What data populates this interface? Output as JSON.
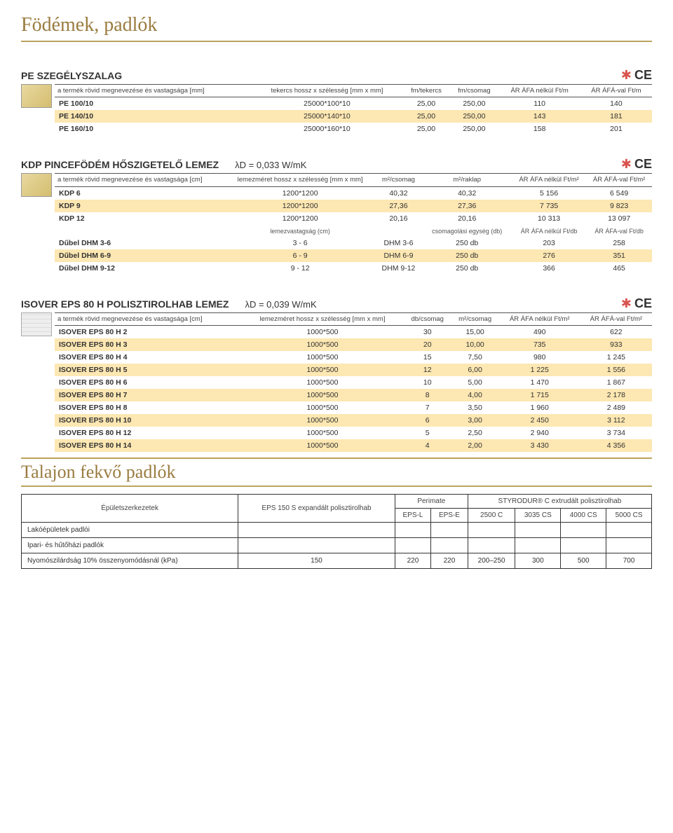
{
  "page_title": "Födémek, padlók",
  "pe": {
    "title": "PE SZEGÉLYSZALAG",
    "headers": [
      "a termék rövid megnevezése és vastagsága [mm]",
      "tekercs hossz x szélesség [mm x mm]",
      "fm/tekercs",
      "fm/csomag",
      "ÁR ÁFA nélkül Ft/m",
      "ÁR ÁFÁ-val Ft/m"
    ],
    "rows": [
      {
        "name": "PE 100/10",
        "size": "25000*100*10",
        "c1": "25,00",
        "c2": "250,00",
        "p1": "110",
        "p2": "140"
      },
      {
        "name": "PE 140/10",
        "size": "25000*140*10",
        "c1": "25,00",
        "c2": "250,00",
        "p1": "143",
        "p2": "181"
      },
      {
        "name": "PE 160/10",
        "size": "25000*160*10",
        "c1": "25,00",
        "c2": "250,00",
        "p1": "158",
        "p2": "201"
      }
    ]
  },
  "kdp": {
    "title": "KDP PINCEFÖDÉM HŐSZIGETELŐ LEMEZ",
    "lambda": "λD = 0,033 W/mK",
    "headers": [
      "a termék rövid megnevezése és vastagsága [cm]",
      "lemezméret hossz x szélesség [mm x mm]",
      "m²/csomag",
      "m²/raklap",
      "ÁR ÁFA nélkül Ft/m²",
      "ÁR ÁFÁ-val Ft/m²"
    ],
    "rows": [
      {
        "name": "KDP 6",
        "size": "1200*1200",
        "c1": "40,32",
        "c2": "40,32",
        "p1": "5 156",
        "p2": "6 549"
      },
      {
        "name": "KDP 9",
        "size": "1200*1200",
        "c1": "27,36",
        "c2": "27,36",
        "p1": "7 735",
        "p2": "9 823"
      },
      {
        "name": "KDP 12",
        "size": "1200*1200",
        "c1": "20,16",
        "c2": "20,16",
        "p1": "10 313",
        "p2": "13 097"
      }
    ],
    "sub_headers": [
      "",
      "lemezvastagság (cm)",
      "",
      "csomagolási egység (db)",
      "ÁR ÁFA nélkül Ft/db",
      "ÁR ÁFA-val Ft/db"
    ],
    "dubel": [
      {
        "name": "Dűbel DHM 3-6",
        "size": "3 - 6",
        "c1": "DHM 3-6",
        "c2": "250 db",
        "p1": "203",
        "p2": "258"
      },
      {
        "name": "Dűbel DHM 6-9",
        "size": "6 - 9",
        "c1": "DHM 6-9",
        "c2": "250 db",
        "p1": "276",
        "p2": "351"
      },
      {
        "name": "Dűbel DHM 9-12",
        "size": "9 - 12",
        "c1": "DHM 9-12",
        "c2": "250 db",
        "p1": "366",
        "p2": "465"
      }
    ]
  },
  "eps": {
    "title": "ISOVER EPS 80 H POLISZTIROLHAB LEMEZ",
    "lambda": "λD = 0,039 W/mK",
    "headers": [
      "a termék rövid megnevezése és vastagsága [cm]",
      "lemezméret hossz x szélesség [mm x mm]",
      "db/csomag",
      "m²/csomag",
      "ÁR ÁFA nélkül Ft/m²",
      "ÁR ÁFÁ-val Ft/m²"
    ],
    "rows": [
      {
        "name": "ISOVER EPS 80 H 2",
        "size": "1000*500",
        "c1": "30",
        "c2": "15,00",
        "p1": "490",
        "p2": "622"
      },
      {
        "name": "ISOVER EPS 80 H 3",
        "size": "1000*500",
        "c1": "20",
        "c2": "10,00",
        "p1": "735",
        "p2": "933"
      },
      {
        "name": "ISOVER EPS 80 H 4",
        "size": "1000*500",
        "c1": "15",
        "c2": "7,50",
        "p1": "980",
        "p2": "1 245"
      },
      {
        "name": "ISOVER EPS 80 H 5",
        "size": "1000*500",
        "c1": "12",
        "c2": "6,00",
        "p1": "1 225",
        "p2": "1 556"
      },
      {
        "name": "ISOVER EPS 80 H 6",
        "size": "1000*500",
        "c1": "10",
        "c2": "5,00",
        "p1": "1 470",
        "p2": "1 867"
      },
      {
        "name": "ISOVER EPS 80 H 7",
        "size": "1000*500",
        "c1": "8",
        "c2": "4,00",
        "p1": "1 715",
        "p2": "2 178"
      },
      {
        "name": "ISOVER EPS 80 H 8",
        "size": "1000*500",
        "c1": "7",
        "c2": "3,50",
        "p1": "1 960",
        "p2": "2 489"
      },
      {
        "name": "ISOVER EPS 80 H 10",
        "size": "1000*500",
        "c1": "6",
        "c2": "3,00",
        "p1": "2 450",
        "p2": "3 112"
      },
      {
        "name": "ISOVER EPS 80 H 12",
        "size": "1000*500",
        "c1": "5",
        "c2": "2,50",
        "p1": "2 940",
        "p2": "3 734"
      },
      {
        "name": "ISOVER EPS 80 H 14",
        "size": "1000*500",
        "c1": "4",
        "c2": "2,00",
        "p1": "3 430",
        "p2": "4 356"
      }
    ]
  },
  "talajon": {
    "title": "Talajon fekvő padlók",
    "col_h1": "Épületszerkezetek",
    "col_h2a": "EPS 150 S expandált polisztirolhab",
    "col_h2b": "Perimate",
    "col_h2c": "STYRODUR® C extrudált polisztirolhab",
    "sub": [
      "EPS-L",
      "EPS-E",
      "2500 C",
      "3035 CS",
      "4000 CS",
      "5000 CS"
    ],
    "rows": [
      {
        "label": "Lakóépületek padlói",
        "v": [
          "",
          "",
          "",
          "",
          "",
          "",
          ""
        ]
      },
      {
        "label": "Ipari- és hűtőházi padlók",
        "v": [
          "",
          "",
          "",
          "",
          "",
          "",
          ""
        ]
      },
      {
        "label": "Nyomószilárdság 10% összenyomódásnál (kPa)",
        "v": [
          "150",
          "220",
          "220",
          "200–250",
          "300",
          "500",
          "700"
        ]
      }
    ]
  },
  "cert_label": "CE"
}
